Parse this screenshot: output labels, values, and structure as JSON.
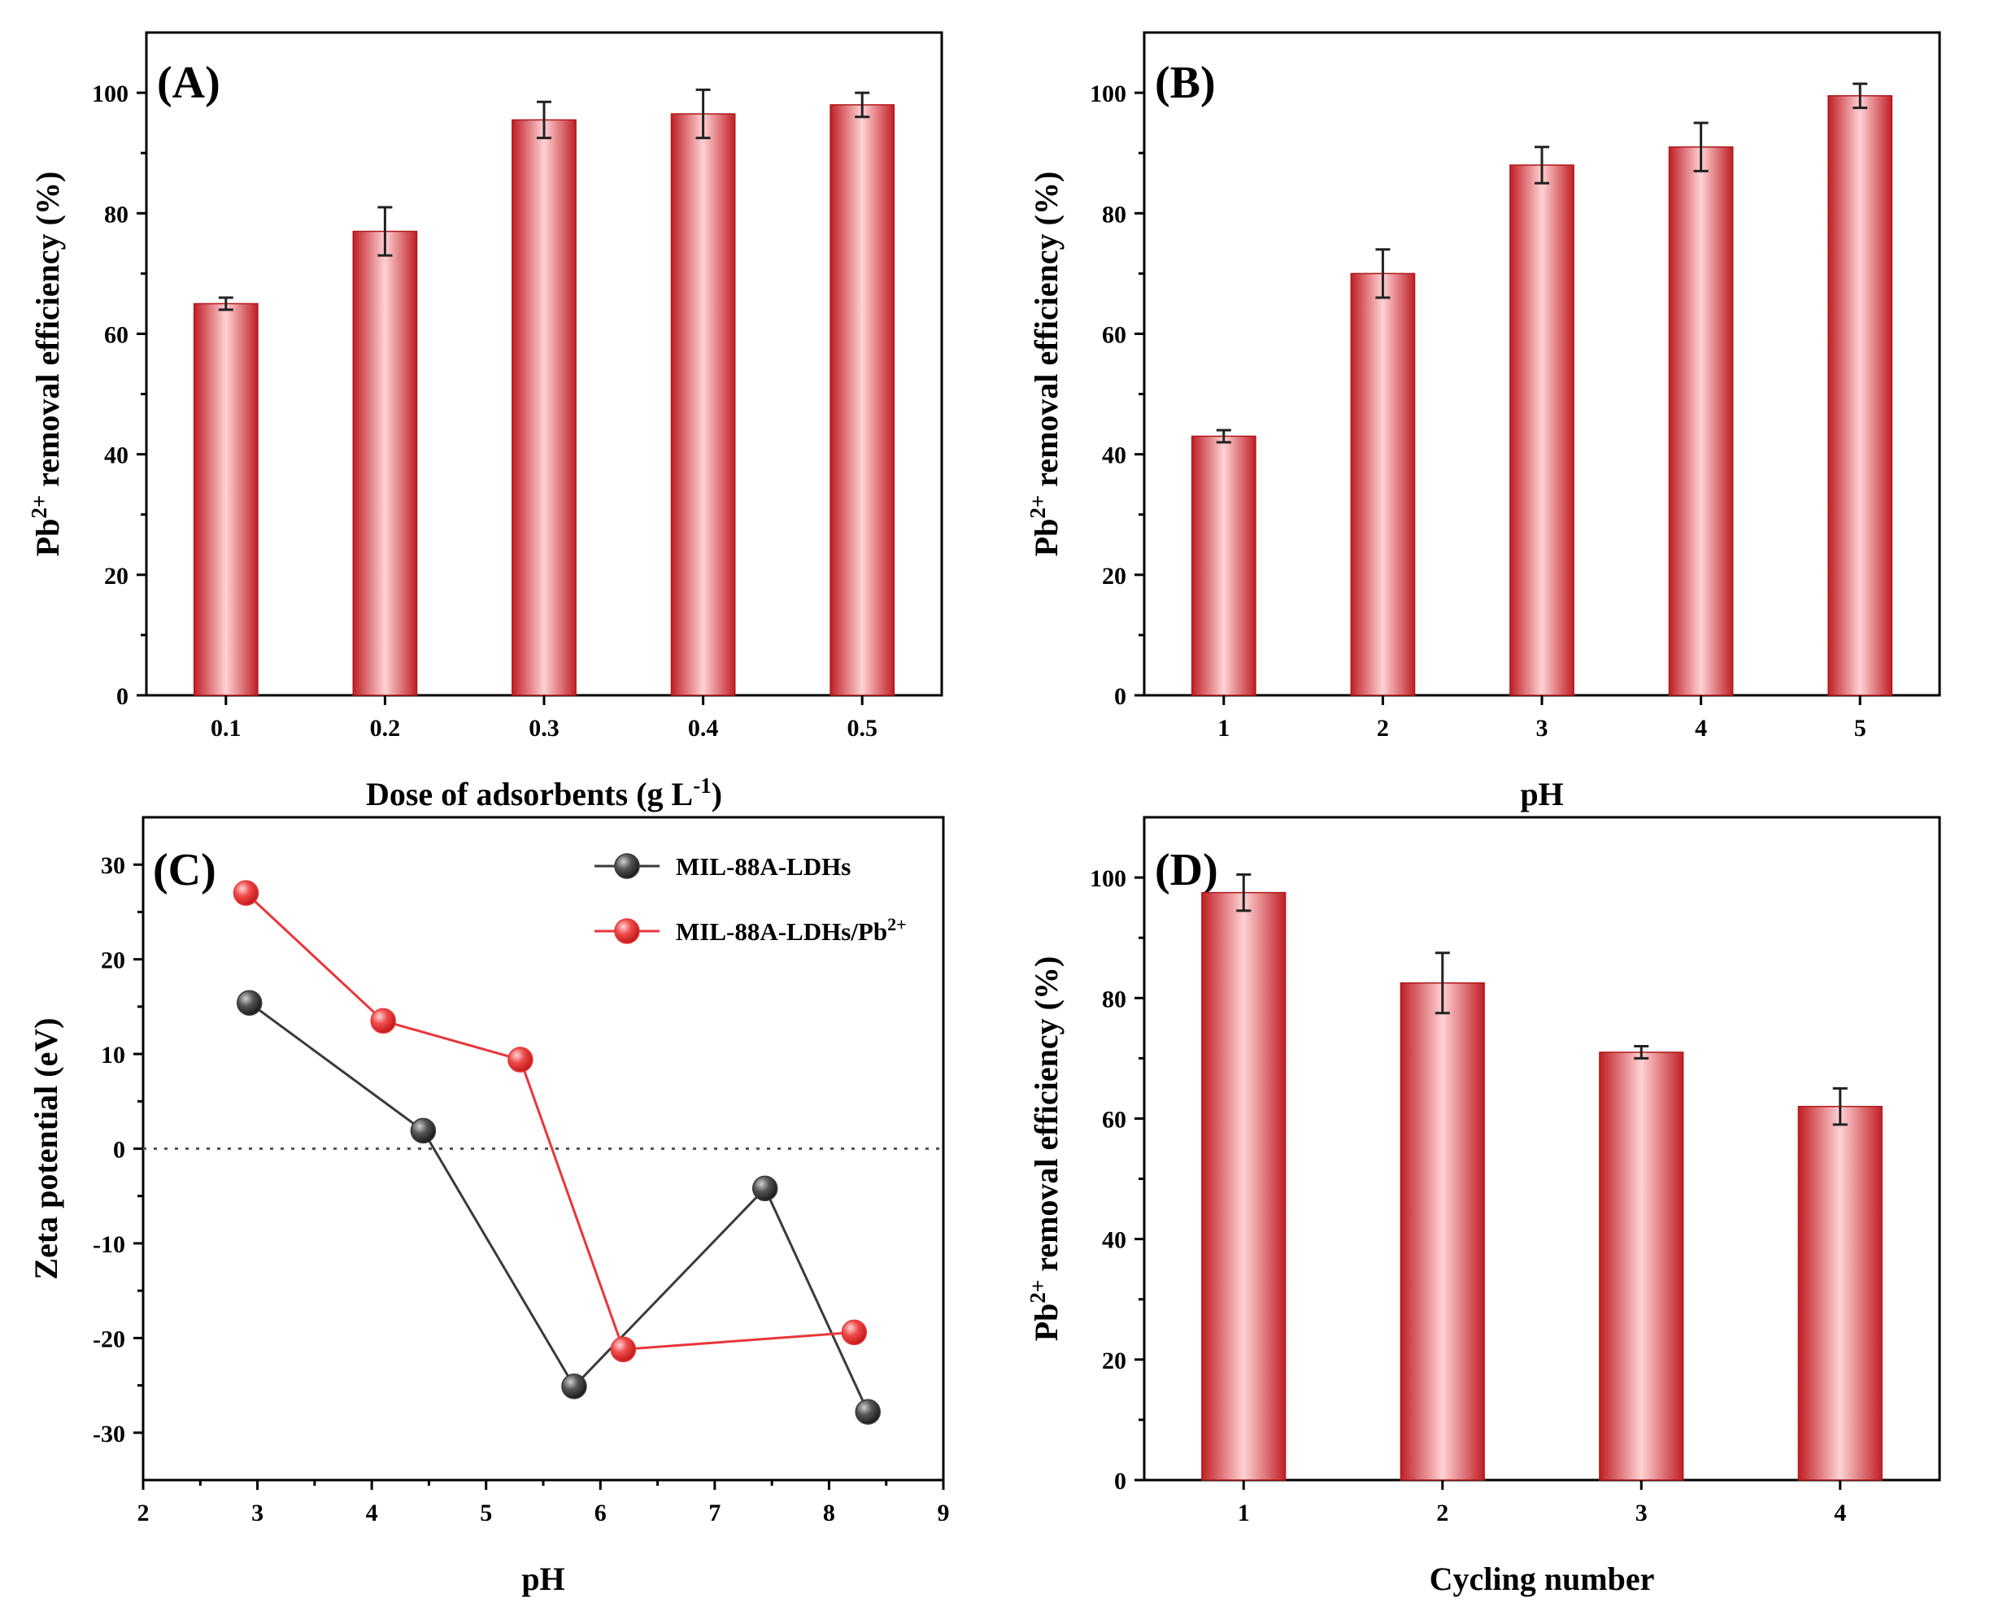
{
  "colors": {
    "bar_dark": "#c01f25",
    "bar_light": "#ffd2d4",
    "black_series": "#3a3a3a",
    "red_series": "#e8363a",
    "red_line": "#e8363a"
  },
  "chart_data": [
    {
      "panel": "(A)",
      "type": "bar",
      "categories": [
        "0.1",
        "0.2",
        "0.3",
        "0.4",
        "0.5"
      ],
      "values": [
        65,
        77,
        95.5,
        96.5,
        98
      ],
      "errors": [
        1,
        4,
        3,
        4,
        2
      ],
      "xlabel": "Dose of adsorbents (g L-1)",
      "xlabel_main": "Dose of adsorbents (g L",
      "xlabel_sup": "-1",
      "xlabel_tail": ")",
      "ylabel": "Pb2+ removal efficiency (%)",
      "ylabel_pre": "Pb",
      "ylabel_sup": "2+",
      "ylabel_post": " removal efficiency (%)",
      "ylim": [
        0,
        110
      ],
      "yticks": [
        0,
        20,
        40,
        60,
        80,
        100
      ]
    },
    {
      "panel": "(B)",
      "type": "bar",
      "categories": [
        "1",
        "2",
        "3",
        "4",
        "5"
      ],
      "values": [
        43,
        70,
        88,
        91,
        99.5
      ],
      "errors": [
        1,
        4,
        3,
        4,
        2
      ],
      "xlabel": "pH",
      "xlabel_main": "pH",
      "xlabel_sup": "",
      "xlabel_tail": "",
      "ylabel": "Pb2+ removal efficiency (%)",
      "ylabel_pre": "Pb",
      "ylabel_sup": "2+",
      "ylabel_post": " removal efficiency (%)",
      "ylim": [
        0,
        110
      ],
      "yticks": [
        0,
        20,
        40,
        60,
        80,
        100
      ]
    },
    {
      "panel": "(C)",
      "type": "line",
      "xlabel": "pH",
      "ylabel": "Zeta potential (eV)",
      "xlim": [
        2,
        9
      ],
      "ylim": [
        -35,
        35
      ],
      "xticks": [
        2,
        3,
        4,
        5,
        6,
        7,
        8,
        9
      ],
      "yticks": [
        -30,
        -20,
        -10,
        0,
        10,
        20,
        30
      ],
      "reference_line_y": 0,
      "legend_position": "top-right",
      "series": [
        {
          "name": "MIL-88A-LDHs",
          "name_main": "MIL-88A-LDHs",
          "name_sup": "",
          "color": "#3a3a3a",
          "x": [
            2.93,
            4.45,
            5.77,
            7.44,
            8.34
          ],
          "y": [
            15.4,
            1.9,
            -25.1,
            -4.2,
            -27.8
          ]
        },
        {
          "name": "MIL-88A-LDHs/Pb2+",
          "name_main": "MIL-88A-LDHs/Pb",
          "name_sup": "2+",
          "color": "#e8363a",
          "x": [
            2.9,
            4.1,
            5.3,
            6.2,
            8.22
          ],
          "y": [
            27,
            13.5,
            9.4,
            -21.2,
            -19.4
          ]
        }
      ]
    },
    {
      "panel": "(D)",
      "type": "bar",
      "categories": [
        "1",
        "2",
        "3",
        "4"
      ],
      "values": [
        97.5,
        82.5,
        71,
        62
      ],
      "errors": [
        3,
        5,
        1,
        3
      ],
      "xlabel": "Cycling number",
      "xlabel_main": "Cycling number",
      "xlabel_sup": "",
      "xlabel_tail": "",
      "ylabel": "Pb2+ removal efficiency (%)",
      "ylabel_pre": "Pb",
      "ylabel_sup": "2+",
      "ylabel_post": " removal efficiency (%)",
      "ylim": [
        0,
        110
      ],
      "yticks": [
        0,
        20,
        40,
        60,
        80,
        100
      ]
    }
  ]
}
